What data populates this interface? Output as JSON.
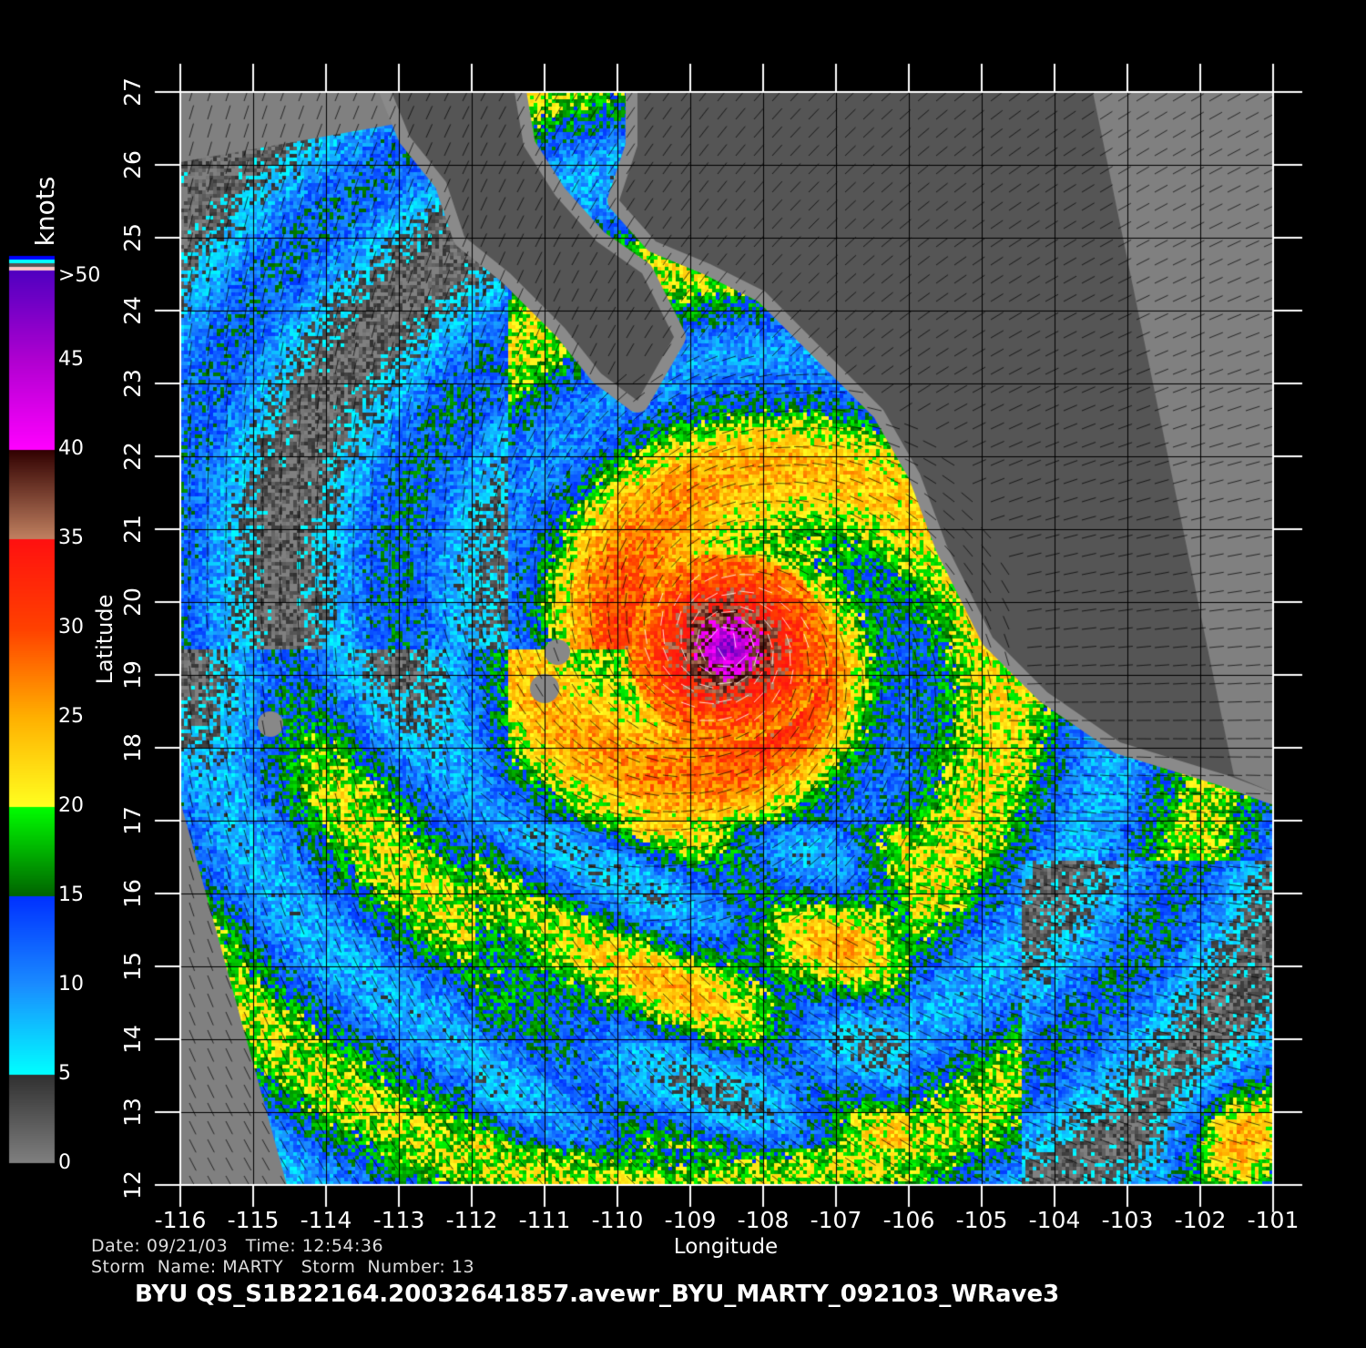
{
  "axes": {
    "xlabel": "Longitude",
    "ylabel": "Latitude",
    "x_ticks": [
      "-116",
      "-115",
      "-114",
      "-113",
      "-112",
      "-111",
      "-110",
      "-109",
      "-108",
      "-107",
      "-106",
      "-105",
      "-104",
      "-103",
      "-102",
      "-101"
    ],
    "y_ticks": [
      "27",
      "26",
      "25",
      "24",
      "23",
      "22",
      "21",
      "20",
      "19",
      "18",
      "17",
      "16",
      "15",
      "14",
      "13",
      "12"
    ],
    "lon_range": [
      -116,
      -101
    ],
    "lat_range": [
      12,
      27
    ]
  },
  "colorbar": {
    "unit": "knots",
    "labels": [
      ">50",
      "45",
      "40",
      "35",
      "30",
      "25",
      "20",
      "15",
      "10",
      "5",
      "0"
    ],
    "stops": [
      {
        "knots": 0,
        "color": "#808080"
      },
      {
        "knots": 5,
        "color": "#303030"
      },
      {
        "knots": 5,
        "color": "#00ffff"
      },
      {
        "knots": 10,
        "color": "#1a8cff"
      },
      {
        "knots": 15,
        "color": "#0030ff"
      },
      {
        "knots": 15,
        "color": "#006400"
      },
      {
        "knots": 20,
        "color": "#00ff00"
      },
      {
        "knots": 20,
        "color": "#ffff20"
      },
      {
        "knots": 25,
        "color": "#ffb000"
      },
      {
        "knots": 30,
        "color": "#ff4000"
      },
      {
        "knots": 35,
        "color": "#ff1010"
      },
      {
        "knots": 35,
        "color": "#c08060"
      },
      {
        "knots": 40,
        "color": "#300000"
      },
      {
        "knots": 40,
        "color": "#ff00ff"
      },
      {
        "knots": 45,
        "color": "#b000d0"
      },
      {
        "knots": 50,
        "color": "#5000c0"
      }
    ],
    "land_color": "#555555",
    "nodata_color": "#808080"
  },
  "info": {
    "date_line": "Date: 09/21/03   Time: 12:54:36",
    "storm_line": "Storm  Name: MARTY   Storm  Number: 13",
    "title": "BYU  QS_S1B22164.20032641857.avewr_BYU_MARTY_092103_WRave3"
  }
}
